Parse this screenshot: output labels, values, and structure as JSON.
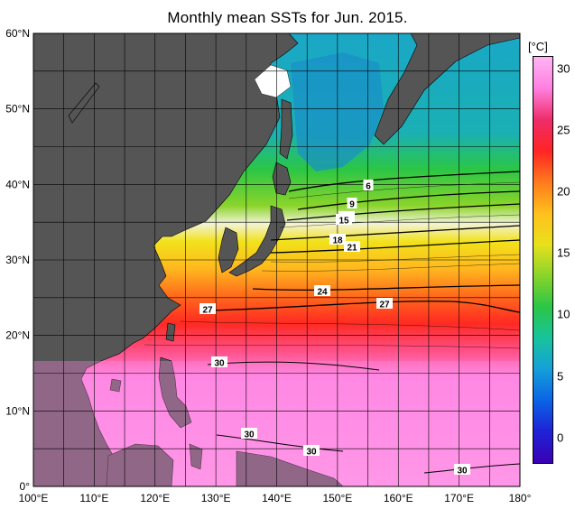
{
  "title": "Monthly mean SSTs for Jun. 2015.",
  "map": {
    "lon_range": [
      100,
      180
    ],
    "lat_range": [
      0,
      60
    ],
    "lat_ticks": [
      "0°",
      "10°N",
      "20°N",
      "30°N",
      "40°N",
      "50°N",
      "60°N"
    ],
    "lon_ticks": [
      "100°E",
      "110°E",
      "120°E",
      "130°E",
      "140°E",
      "150°E",
      "160°E",
      "170°E",
      "180°"
    ],
    "contour_labels": [
      "6",
      "9",
      "12",
      "15",
      "18",
      "21",
      "24",
      "27",
      "27",
      "30",
      "30",
      "30",
      "30"
    ],
    "land_color": "#555555",
    "grid": true
  },
  "colorbar": {
    "unit": "[°C]",
    "range": [
      -2,
      31
    ],
    "ticks": [
      "0",
      "5",
      "10",
      "15",
      "20",
      "25",
      "30"
    ],
    "colors": [
      "#3b00b4",
      "#1e22d6",
      "#0b63e6",
      "#15a0d8",
      "#18c39c",
      "#2bc646",
      "#8ad42a",
      "#e8e01c",
      "#ffc01e",
      "#ff7a1c",
      "#ff2424",
      "#ee2d6a",
      "#ff80e0",
      "#ffb4f4"
    ]
  }
}
